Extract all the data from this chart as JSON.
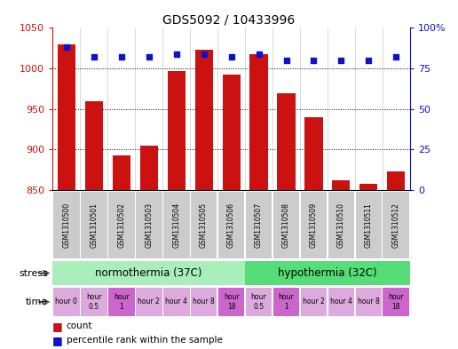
{
  "title": "GDS5092 / 10433996",
  "samples": [
    "GSM1310500",
    "GSM1310501",
    "GSM1310502",
    "GSM1310503",
    "GSM1310504",
    "GSM1310505",
    "GSM1310506",
    "GSM1310507",
    "GSM1310508",
    "GSM1310509",
    "GSM1310510",
    "GSM1310511",
    "GSM1310512"
  ],
  "counts": [
    1030,
    960,
    893,
    905,
    997,
    1023,
    992,
    1018,
    970,
    940,
    862,
    858,
    873
  ],
  "percentile_ranks": [
    88,
    82,
    82,
    82,
    84,
    84,
    82,
    84,
    80,
    80,
    80,
    80,
    82
  ],
  "ylim_left": [
    850,
    1050
  ],
  "ylim_right": [
    0,
    100
  ],
  "yticks_left": [
    850,
    900,
    950,
    1000,
    1050
  ],
  "yticks_right": [
    0,
    25,
    50,
    75,
    100
  ],
  "ytick_labels_right": [
    "0",
    "25",
    "50",
    "75",
    "100%"
  ],
  "bar_color": "#cc1111",
  "dot_color": "#1111cc",
  "bar_bottom": 850,
  "stress_norm_label": "normothermia (37C)",
  "stress_norm_color": "#aaeebb",
  "stress_hypo_label": "hypothermia (32C)",
  "stress_hypo_color": "#55dd77",
  "time_labels": [
    "hour 0",
    "hour\n0.5",
    "hour\n1",
    "hour 2",
    "hour 4",
    "hour 8",
    "hour\n18",
    "hour\n0.5",
    "hour\n1",
    "hour 2",
    "hour 4",
    "hour 8",
    "hour\n18"
  ],
  "time_colors": [
    "#ddaadd",
    "#ddaadd",
    "#cc66cc",
    "#ddaadd",
    "#ddaadd",
    "#ddaadd",
    "#cc66cc",
    "#ddaadd",
    "#cc66cc",
    "#ddaadd",
    "#ddaadd",
    "#ddaadd",
    "#cc66cc"
  ],
  "background_color": "#ffffff",
  "sample_bg_color": "#cccccc"
}
